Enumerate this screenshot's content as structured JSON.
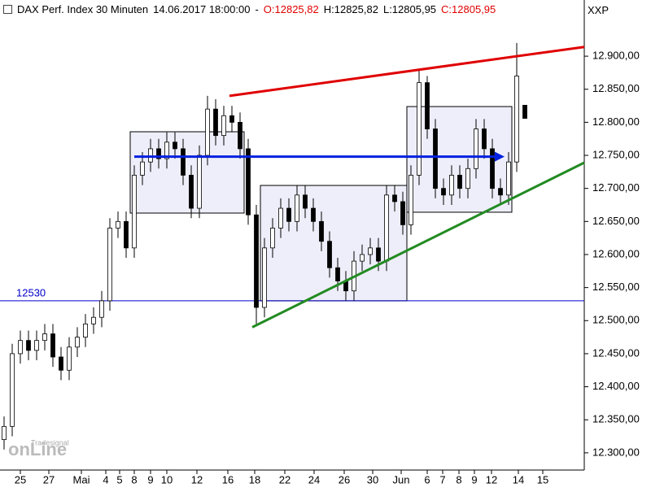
{
  "chart_data": {
    "type": "candlestick",
    "header": {
      "title": "DAX Perf. Index 30 Minuten",
      "datetime": "14.06.2017 18:00:00",
      "separator": "-",
      "open_label": "O:12825,82",
      "high_label": "H:12825,82",
      "low_label": "L:12805,95",
      "close_label": "C:12805,95"
    },
    "symbol": "XXP",
    "watermark": {
      "brand": "Tradesignal",
      "name": "onLine"
    },
    "x": [
      0,
      1,
      2,
      3,
      4,
      5,
      6,
      7,
      8,
      9,
      10,
      11,
      12,
      13,
      14,
      15,
      16,
      17,
      18,
      19,
      20,
      21,
      22,
      23,
      24,
      25,
      26,
      27,
      28,
      29,
      30,
      31,
      32,
      33,
      34,
      35,
      36,
      37,
      38,
      39,
      40,
      41,
      42,
      43,
      44,
      45,
      46,
      47,
      48,
      49,
      50,
      51,
      52,
      53,
      54,
      55,
      56,
      57,
      58,
      59,
      60,
      61,
      62,
      63,
      64
    ],
    "open": [
      12320,
      12340,
      12450,
      12470,
      12455,
      12470,
      12480,
      12445,
      12425,
      12460,
      12475,
      12495,
      12505,
      12530,
      12640,
      12650,
      12610,
      12720,
      12740,
      12760,
      12745,
      12770,
      12760,
      12720,
      12670,
      12750,
      12820,
      12780,
      12810,
      12800,
      12760,
      12660,
      12520,
      12610,
      12640,
      12670,
      12650,
      12690,
      12670,
      12650,
      12620,
      12580,
      12560,
      12545,
      12590,
      12600,
      12610,
      12590,
      12690,
      12680,
      12645,
      12720,
      12860,
      12790,
      12700,
      12690,
      12720,
      12700,
      12730,
      12790,
      12760,
      12700,
      12690,
      12740,
      12825.82
    ],
    "high": [
      12355,
      12465,
      12485,
      12485,
      12485,
      12495,
      12495,
      12460,
      12475,
      12490,
      12510,
      12520,
      12545,
      12655,
      12665,
      12665,
      12735,
      12755,
      12775,
      12775,
      12785,
      12785,
      12775,
      12735,
      12765,
      12840,
      12835,
      12825,
      12825,
      12815,
      12775,
      12675,
      12625,
      12655,
      12685,
      12685,
      12705,
      12705,
      12685,
      12665,
      12635,
      12595,
      12575,
      12605,
      12615,
      12625,
      12625,
      12705,
      12705,
      12695,
      12735,
      12880,
      12870,
      12805,
      12715,
      12735,
      12735,
      12745,
      12805,
      12805,
      12775,
      12715,
      12755,
      12920,
      12825.82
    ],
    "low": [
      12305,
      12325,
      12435,
      12440,
      12440,
      12455,
      12430,
      12410,
      12410,
      12445,
      12460,
      12480,
      12490,
      12515,
      12625,
      12595,
      12595,
      12705,
      12725,
      12730,
      12730,
      12745,
      12705,
      12655,
      12655,
      12735,
      12765,
      12765,
      12785,
      12745,
      12645,
      12495,
      12505,
      12595,
      12625,
      12635,
      12635,
      12655,
      12635,
      12605,
      12565,
      12545,
      12530,
      12530,
      12575,
      12585,
      12575,
      12575,
      12665,
      12630,
      12630,
      12705,
      12775,
      12685,
      12675,
      12675,
      12685,
      12685,
      12715,
      12745,
      12685,
      12675,
      12675,
      12725,
      12805.95
    ],
    "close": [
      12340,
      12450,
      12470,
      12455,
      12470,
      12480,
      12445,
      12425,
      12460,
      12475,
      12495,
      12505,
      12530,
      12640,
      12650,
      12610,
      12720,
      12740,
      12760,
      12745,
      12770,
      12760,
      12720,
      12670,
      12750,
      12820,
      12780,
      12810,
      12800,
      12760,
      12660,
      12520,
      12610,
      12640,
      12670,
      12650,
      12690,
      12670,
      12650,
      12620,
      12580,
      12560,
      12545,
      12590,
      12600,
      12610,
      12590,
      12690,
      12680,
      12645,
      12720,
      12860,
      12790,
      12700,
      12690,
      12720,
      12700,
      12730,
      12790,
      12760,
      12700,
      12690,
      12740,
      12870,
      12805.95
    ],
    "up_color": "#ffffff",
    "down_color": "#000000",
    "xlim": [
      -0.5,
      71.3
    ],
    "xticks": [
      {
        "value": 2,
        "label": "25"
      },
      {
        "value": 5.5,
        "label": "27"
      },
      {
        "value": 9.5,
        "label": "Mai"
      },
      {
        "value": 12.5,
        "label": "4"
      },
      {
        "value": 14.2,
        "label": "5"
      },
      {
        "value": 16,
        "label": "8"
      },
      {
        "value": 18,
        "label": "9"
      },
      {
        "value": 20,
        "label": "10"
      },
      {
        "value": 23.7,
        "label": "12"
      },
      {
        "value": 27.5,
        "label": "16"
      },
      {
        "value": 30.8,
        "label": "18"
      },
      {
        "value": 34.5,
        "label": "22"
      },
      {
        "value": 38.1,
        "label": "24"
      },
      {
        "value": 41.8,
        "label": "26"
      },
      {
        "value": 45.3,
        "label": "30"
      },
      {
        "value": 48.8,
        "label": "Jun"
      },
      {
        "value": 52,
        "label": "6"
      },
      {
        "value": 53.9,
        "label": "7"
      },
      {
        "value": 55.9,
        "label": "8"
      },
      {
        "value": 57.8,
        "label": "9"
      },
      {
        "value": 59.9,
        "label": "12"
      },
      {
        "value": 63.2,
        "label": "14"
      },
      {
        "value": 66.2,
        "label": "15"
      }
    ],
    "ylim": [
      12274,
      12985
    ],
    "yticks": [
      {
        "value": 12300,
        "label": "12.300,00"
      },
      {
        "value": 12350,
        "label": "12.350,00"
      },
      {
        "value": 12400,
        "label": "12.400,00"
      },
      {
        "value": 12450,
        "label": "12.450,00"
      },
      {
        "value": 12500,
        "label": "12.500,00"
      },
      {
        "value": 12550,
        "label": "12.550,00"
      },
      {
        "value": 12600,
        "label": "12.600,00"
      },
      {
        "value": 12650,
        "label": "12.650,00"
      },
      {
        "value": 12700,
        "label": "12.700,00"
      },
      {
        "value": 12750,
        "label": "12.750,00"
      },
      {
        "value": 12800,
        "label": "12.800,00"
      },
      {
        "value": 12850,
        "label": "12.850,00"
      },
      {
        "value": 12900,
        "label": "12.900,00"
      }
    ],
    "hline": {
      "value": 12530,
      "label": "12530",
      "color": "#0000cc"
    },
    "boxes": [
      {
        "x": [
          15.5,
          29.5
        ],
        "y": [
          12662.7,
          12785.7
        ]
      },
      {
        "x": [
          31.5,
          49.5
        ],
        "y": [
          12530,
          12704.5
        ]
      },
      {
        "x": [
          49.5,
          62.4
        ],
        "y": [
          12664,
          12823.8
        ]
      }
    ],
    "box_fill": "#eeeefa",
    "trendlines": [
      {
        "x": [
          27.7,
          71.3
        ],
        "y": [
          12840,
          12914
        ],
        "color": "#e00000"
      },
      {
        "x": [
          30.5,
          71.3
        ],
        "y": [
          12490,
          12739
        ],
        "color": "#228b22"
      }
    ],
    "arrow": {
      "x": [
        16,
        61.5
      ],
      "y": [
        12748,
        12748
      ],
      "color": "#0020e0"
    }
  }
}
